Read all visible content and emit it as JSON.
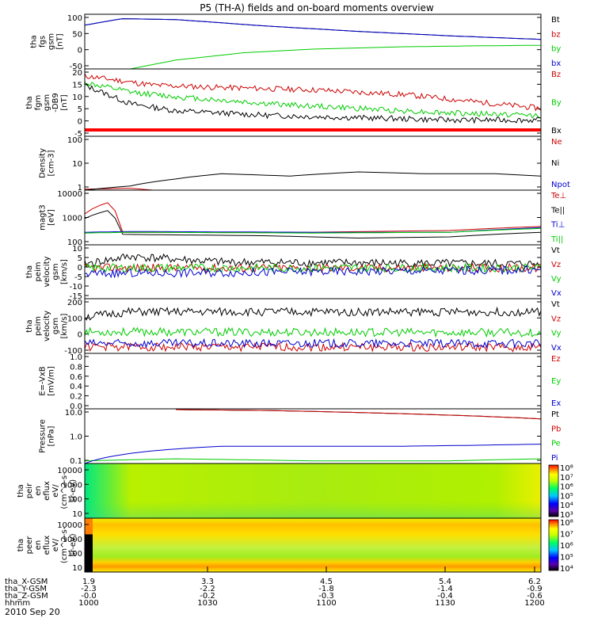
{
  "title": "P5 (TH-A) fields and on-board moments overview",
  "date_label": "2010 Sep 20",
  "chart_data": [
    {
      "type": "line",
      "ylabel": [
        "tha",
        "fgs",
        "gsm",
        "[nT]"
      ],
      "yticks": [
        "100",
        "50",
        "0",
        "-50"
      ],
      "ylim": [
        -75,
        110
      ],
      "series": [
        {
          "name": "Bt",
          "color": "#000000",
          "points": [
            [
              0,
              73
            ],
            [
              0.08,
              95
            ],
            [
              0.2,
              92
            ],
            [
              0.4,
              70
            ],
            [
              0.6,
              52
            ],
            [
              0.8,
              37
            ],
            [
              1,
              25
            ]
          ]
        },
        {
          "name": "bz",
          "color": "#cc0000",
          "points": []
        },
        {
          "name": "by",
          "color": "#00cc00",
          "points": [
            [
              0.1,
              -75
            ],
            [
              0.2,
              -45
            ],
            [
              0.35,
              -20
            ],
            [
              0.5,
              -8
            ],
            [
              0.7,
              0
            ],
            [
              0.85,
              3
            ],
            [
              1,
              5
            ]
          ]
        },
        {
          "name": "bx",
          "color": "#0000cc",
          "points": [
            [
              0,
              73
            ],
            [
              0.08,
              95
            ],
            [
              0.2,
              92
            ],
            [
              0.4,
              70
            ],
            [
              0.6,
              52
            ],
            [
              0.8,
              37
            ],
            [
              1,
              25
            ]
          ]
        }
      ]
    },
    {
      "type": "line",
      "ylabel": [
        "tha",
        "fgm",
        "gsm",
        "-DB9",
        "[nT]"
      ],
      "yticks": [
        "20",
        "15",
        "10",
        "5",
        "0",
        "-5"
      ],
      "ylim": [
        -8,
        21
      ],
      "series": [
        {
          "name": "Bz",
          "color": "#cc0000",
          "points": [
            [
              0,
              18
            ],
            [
              0.15,
              14
            ],
            [
              0.3,
              13
            ],
            [
              0.5,
              12
            ],
            [
              0.7,
              10
            ],
            [
              0.85,
              7
            ],
            [
              1,
              4
            ]
          ]
        },
        {
          "name": "By",
          "color": "#00cc00",
          "points": [
            [
              0,
              15
            ],
            [
              0.1,
              11
            ],
            [
              0.2,
              9
            ],
            [
              0.4,
              6
            ],
            [
              0.6,
              4
            ],
            [
              0.8,
              2
            ],
            [
              1,
              1
            ]
          ]
        },
        {
          "name": "Bx",
          "color": "#000000",
          "points": [
            [
              0,
              14
            ],
            [
              0.1,
              6
            ],
            [
              0.2,
              3
            ],
            [
              0.4,
              1
            ],
            [
              0.6,
              0
            ],
            [
              0.8,
              -1
            ],
            [
              1,
              -1
            ]
          ]
        }
      ],
      "flag_bar": true
    },
    {
      "type": "line",
      "log": true,
      "ylabel": [
        "Density",
        "[cm-3]"
      ],
      "yticks": [
        "100",
        "10",
        "1"
      ],
      "ylim": [
        1,
        200
      ],
      "series": [
        {
          "name": "Ne",
          "color": "#cc0000",
          "points": [
            [
              0,
              1.1
            ],
            [
              0.1,
              1.2
            ],
            [
              0.15,
              1
            ],
            [
              1,
              1
            ]
          ]
        },
        {
          "name": "Ni",
          "color": "#000000",
          "points": [
            [
              0,
              1
            ],
            [
              0.1,
              1.5
            ],
            [
              0.2,
              3
            ],
            [
              0.3,
              5
            ],
            [
              0.45,
              4
            ],
            [
              0.6,
              6
            ],
            [
              0.75,
              5
            ],
            [
              0.9,
              5
            ],
            [
              1,
              4
            ]
          ]
        },
        {
          "name": "Npot",
          "color": "#0000cc",
          "points": []
        }
      ]
    },
    {
      "type": "line",
      "log": true,
      "ylabel": [
        "magt3",
        "[eV]"
      ],
      "yticks": [
        "10000",
        "1000",
        "100"
      ],
      "ylim": [
        100,
        12000
      ],
      "series": [
        {
          "name": "Te⊥",
          "color": "#cc0000",
          "points": [
            [
              0,
              1500
            ],
            [
              0.05,
              4000
            ],
            [
              0.08,
              300
            ],
            [
              0.5,
              300
            ],
            [
              0.8,
              350
            ],
            [
              1,
              500
            ]
          ]
        },
        {
          "name": "Te||",
          "color": "#000000",
          "points": [
            [
              0,
              1000
            ],
            [
              0.05,
              2000
            ],
            [
              0.08,
              250
            ],
            [
              0.4,
              220
            ],
            [
              0.6,
              180
            ],
            [
              0.8,
              200
            ],
            [
              1,
              300
            ]
          ]
        },
        {
          "name": "Ti⊥",
          "color": "#0000cc",
          "points": [
            [
              0,
              300
            ],
            [
              0.1,
              320
            ],
            [
              0.5,
              300
            ],
            [
              0.8,
              300
            ],
            [
              1,
              450
            ]
          ]
        },
        {
          "name": "Ti||",
          "color": "#00cc00",
          "points": [
            [
              0,
              280
            ],
            [
              0.1,
              300
            ],
            [
              0.5,
              280
            ],
            [
              0.8,
              300
            ],
            [
              1,
              420
            ]
          ]
        }
      ]
    },
    {
      "type": "line",
      "ylabel": [
        "tha",
        "peim",
        "velocity",
        "gsm",
        "[km/s]"
      ],
      "yticks": [
        "10",
        "5",
        "0",
        "-5",
        "-10",
        "-15"
      ],
      "ylim": [
        -16,
        12
      ],
      "series": [
        {
          "name": "Vt",
          "color": "#000000",
          "points": [
            [
              0,
              2
            ],
            [
              0.1,
              6
            ],
            [
              0.3,
              3
            ],
            [
              1,
              2
            ]
          ]
        },
        {
          "name": "Vz",
          "color": "#cc0000",
          "points": [
            [
              0,
              0
            ],
            [
              1,
              0
            ]
          ]
        },
        {
          "name": "Vy",
          "color": "#00cc00",
          "points": [
            [
              0,
              0
            ],
            [
              1,
              0
            ]
          ]
        },
        {
          "name": "Vx",
          "color": "#0000cc",
          "points": [
            [
              0,
              -3
            ],
            [
              1,
              -1
            ]
          ]
        }
      ]
    },
    {
      "type": "line",
      "ylabel": [
        "tha",
        "peim",
        "velocity",
        "gsm",
        "[km/s]"
      ],
      "yticks": [
        "200",
        "100",
        "0",
        "-100"
      ],
      "ylim": [
        -120,
        210
      ],
      "series": [
        {
          "name": "Vt",
          "color": "#000000",
          "points": [
            [
              0,
              100
            ],
            [
              0.1,
              130
            ],
            [
              1,
              130
            ]
          ]
        },
        {
          "name": "Vz",
          "color": "#cc0000",
          "points": [
            [
              0,
              -80
            ],
            [
              1,
              -85
            ]
          ]
        },
        {
          "name": "Vy",
          "color": "#00cc00",
          "points": [
            [
              0,
              10
            ],
            [
              1,
              5
            ]
          ]
        },
        {
          "name": "Vx",
          "color": "#0000cc",
          "points": [
            [
              0,
              -60
            ],
            [
              1,
              -60
            ]
          ]
        }
      ]
    },
    {
      "type": "line",
      "ylabel": [
        "E=-VxB",
        "[mV/m]"
      ],
      "yticks": [
        "1.0",
        "0.8",
        "0.6",
        "0.4",
        "0.2",
        "0.0"
      ],
      "ylim": [
        0,
        1
      ],
      "series": [
        {
          "name": "Ez",
          "color": "#cc0000",
          "points": []
        },
        {
          "name": "Ey",
          "color": "#00cc00",
          "points": []
        },
        {
          "name": "Ex",
          "color": "#0000cc",
          "points": []
        }
      ]
    },
    {
      "type": "line",
      "log": true,
      "ylabel": [
        "Pressure",
        "[nPa]"
      ],
      "yticks": [
        "10.0",
        "1.0",
        "0.1"
      ],
      "ylim": [
        0.03,
        12
      ],
      "series": [
        {
          "name": "Pt",
          "color": "#000000",
          "points": [
            [
              0.2,
              11
            ],
            [
              0.4,
              10
            ],
            [
              0.6,
              8
            ],
            [
              0.8,
              6
            ],
            [
              1,
              4
            ]
          ]
        },
        {
          "name": "Pb",
          "color": "#cc0000",
          "points": [
            [
              0.2,
              11
            ],
            [
              0.4,
              10
            ],
            [
              0.6,
              8
            ],
            [
              0.8,
              6
            ],
            [
              1,
              4
            ]
          ]
        },
        {
          "name": "Pe",
          "color": "#00cc00",
          "points": [
            [
              0,
              0.04
            ],
            [
              0.2,
              0.05
            ],
            [
              0.5,
              0.04
            ],
            [
              0.8,
              0.04
            ],
            [
              1,
              0.05
            ]
          ]
        },
        {
          "name": "Pi",
          "color": "#0000cc",
          "points": [
            [
              0,
              0.03
            ],
            [
              0.15,
              0.12
            ],
            [
              0.3,
              0.2
            ],
            [
              0.5,
              0.2
            ],
            [
              0.7,
              0.2
            ],
            [
              0.85,
              0.22
            ],
            [
              1,
              0.25
            ]
          ]
        }
      ]
    },
    {
      "type": "heatmap",
      "ylabel": [
        "tha",
        "peir",
        "en",
        "eflux",
        "eV/",
        "(cm^2-s-",
        "sr-eV)"
      ],
      "yticks": [
        "10000",
        "1000",
        "100",
        "10"
      ],
      "colorbar_ticks": [
        "10⁸",
        "10⁷",
        "10⁶",
        "10⁵",
        "10⁴",
        "10³"
      ]
    },
    {
      "type": "heatmap",
      "ylabel": [
        "tha",
        "peer",
        "en",
        "eflux",
        "eV/",
        "(cm^2-s-",
        "sr-eV)"
      ],
      "yticks": [
        "10000",
        "1000",
        "100",
        "10"
      ],
      "colorbar_ticks": [
        "10⁸",
        "10⁷",
        "10⁶",
        "10⁵",
        "10⁴"
      ]
    }
  ],
  "x_axis": {
    "row_labels": [
      "tha_X-GSM",
      "tha_Y-GSM",
      "tha_Z-GSM",
      "hhmm"
    ],
    "columns": [
      {
        "x": 1.9,
        "hhmm": "1000",
        "X": "1.9",
        "Y": "-2.3",
        "Z": "-0.0"
      },
      {
        "x": 3.3,
        "hhmm": "1030",
        "X": "3.3",
        "Y": "-2.2",
        "Z": "-0.2"
      },
      {
        "x": 4.5,
        "hhmm": "1100",
        "X": "4.5",
        "Y": "-1.8",
        "Z": "-0.3"
      },
      {
        "x": 5.4,
        "hhmm": "1130",
        "X": "5.4",
        "Y": "-1.4",
        "Z": "-0.4"
      },
      {
        "x": 6.2,
        "hhmm": "1200",
        "X": "6.2",
        "Y": "-0.9",
        "Z": "-0.6"
      }
    ]
  }
}
